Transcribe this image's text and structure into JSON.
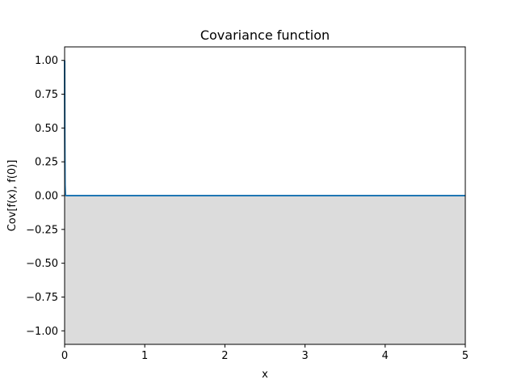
{
  "chart_data": {
    "type": "line",
    "title": "Covariance function",
    "xlabel": "x",
    "ylabel": "Cov[f(x), f(0)]",
    "xlim": [
      0,
      5
    ],
    "ylim": [
      -1.1,
      1.1
    ],
    "x_ticks": [
      "0",
      "1",
      "2",
      "3",
      "4",
      "5"
    ],
    "y_ticks": [
      "−1.00",
      "−0.75",
      "−0.50",
      "−0.25",
      "0.00",
      "0.25",
      "0.50",
      "0.75",
      "1.00"
    ],
    "grid": false,
    "series": [
      {
        "x": [
          0,
          0.002,
          0.005,
          0.01,
          0.02,
          0.05,
          0.1,
          0.5,
          1,
          2,
          3,
          4,
          5
        ],
        "y": [
          1.0,
          0.45,
          0.08,
          0.003,
          0.0,
          0.0,
          0.0,
          0.0,
          0.0,
          0.0,
          0.0,
          0.0,
          0.0
        ],
        "color": "#1f77b4"
      }
    ],
    "shaded_region": {
      "y_from": -1.1,
      "y_to": 0,
      "color": "#dcdcdc"
    }
  }
}
